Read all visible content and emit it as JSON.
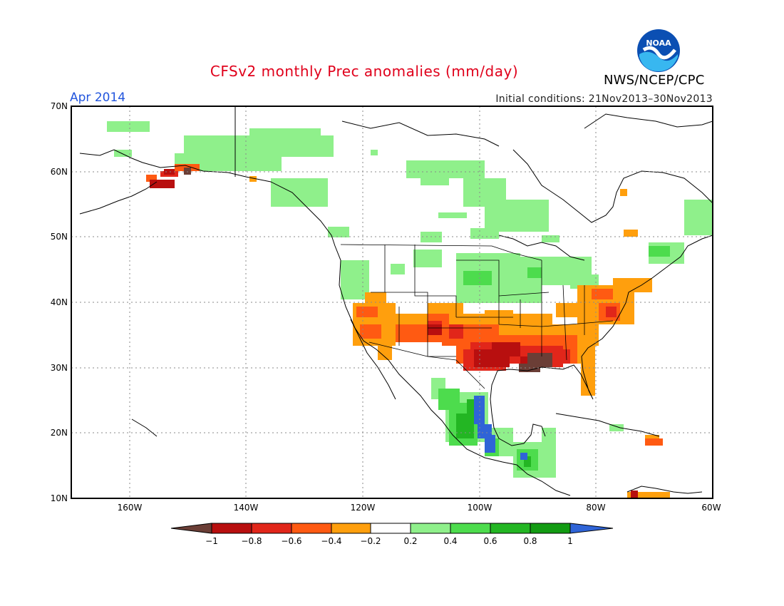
{
  "header": {
    "title": "CFSv2 monthly Prec anomalies (mm/day)",
    "period": "Apr 2014",
    "initial_conditions": "Initial conditions: 21Nov2013–30Nov2013",
    "agency": "NWS/NCEP/CPC",
    "logo_text": "NOAA"
  },
  "map": {
    "lat_labels": [
      "70N",
      "60N",
      "50N",
      "40N",
      "30N",
      "20N",
      "10N"
    ],
    "lon_labels": [
      "160W",
      "140W",
      "120W",
      "100W",
      "80W",
      "60W"
    ],
    "lat_range": [
      10,
      70
    ],
    "lon_range": [
      -170,
      -60
    ],
    "grid": "dotted"
  },
  "legend": {
    "labels": [
      "−1",
      "−0.8",
      "−0.6",
      "−0.4",
      "−0.2",
      "0.2",
      "0.4",
      "0.6",
      "0.8",
      "1"
    ],
    "colors": [
      "#6b3e36",
      "#b80f0f",
      "#e1261a",
      "#ff5a12",
      "#ff9f0d",
      "#ffffff",
      "#8ff08b",
      "#4ddc4d",
      "#23b623",
      "#129b12",
      "#2f64d7"
    ]
  }
}
